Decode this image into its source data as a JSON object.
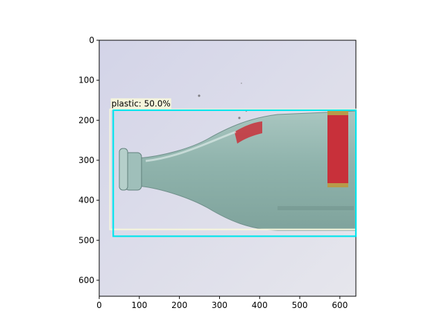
{
  "figure": {
    "x_axis": {
      "ticks": [
        0,
        100,
        200,
        300,
        400,
        500,
        600
      ],
      "range": [
        0,
        640
      ]
    },
    "y_axis": {
      "ticks": [
        0,
        100,
        200,
        300,
        400,
        500,
        600
      ],
      "range": [
        0,
        640
      ],
      "inverted": true
    }
  },
  "image": {
    "subject": "glass bottle lying on its side against a light grey wall",
    "background_color": "#d8d9e6",
    "glass_color": "#8fb3ac",
    "label_color": "#c8303a"
  },
  "detections": [
    {
      "label": "plastic: 50.0%",
      "box": {
        "x0": 27,
        "y0": 173,
        "x1": 640,
        "y1": 473
      },
      "color": "#f5f5dc"
    },
    {
      "label": "",
      "box": {
        "x0": 35,
        "y0": 175,
        "x1": 640,
        "y1": 490
      },
      "color": "#00e5ee"
    }
  ]
}
